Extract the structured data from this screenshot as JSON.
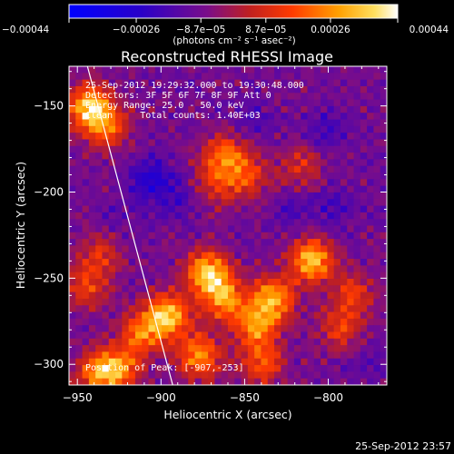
{
  "chart_data": {
    "type": "heatmap",
    "title": "Reconstructed RHESSI Image",
    "xlabel": "Heliocentric X (arcsec)",
    "ylabel": "Heliocentric Y (arcsec)",
    "xlim": [
      -955,
      -765
    ],
    "ylim": [
      -312,
      -127
    ],
    "x_ticks": [
      -950,
      -900,
      -850,
      -800
    ],
    "x_tick_labels": [
      "−950",
      "−900",
      "−850",
      "−800"
    ],
    "y_ticks": [
      -150,
      -200,
      -250,
      -300
    ],
    "y_tick_labels": [
      "−150",
      "−200",
      "−250",
      "−300"
    ],
    "colorbar": {
      "min": -0.00044,
      "max": 0.00044,
      "ticks": [
        -0.00044,
        -0.00026,
        -8.7e-05,
        8.7e-05,
        0.00026,
        0.00044
      ],
      "tick_labels": [
        "−0.00044",
        "−0.00026",
        "−8.7e−05",
        "8.7e−05",
        "0.00026",
        "0.00044"
      ],
      "unit_label": "(photons cm⁻² s⁻¹ asec⁻²)"
    },
    "annotations": [
      "25-Sep-2012 19:29:32.000 to 19:30:48.000",
      "Detectors: 3F 5F 6F 7F 8F 9F Att 0",
      "Energy Range: 25.0 - 50.0 keV",
      "Clean     Total counts: 1.40E+03"
    ],
    "peak_label": "Position of Peak: [-907,-253]",
    "peak_position": [
      -907,
      -253
    ],
    "limb_line": [
      [
        -944,
        -127
      ],
      [
        -893,
        -312
      ]
    ],
    "hot_regions": [
      {
        "x": -943,
        "y": -151,
        "value": 0.00044
      },
      {
        "x": -932,
        "y": -162,
        "value": 0.00026
      },
      {
        "x": -862,
        "y": -178,
        "value": 0.00026
      },
      {
        "x": -868,
        "y": -195,
        "value": 0.0002
      },
      {
        "x": -848,
        "y": -190,
        "value": 0.00024
      },
      {
        "x": -816,
        "y": -185,
        "value": 0.00018
      },
      {
        "x": -872,
        "y": -247,
        "value": 0.00044
      },
      {
        "x": -862,
        "y": -262,
        "value": 0.00035
      },
      {
        "x": -810,
        "y": -240,
        "value": 0.00044
      },
      {
        "x": -833,
        "y": -262,
        "value": 0.00038
      },
      {
        "x": -843,
        "y": -278,
        "value": 0.00034
      },
      {
        "x": -896,
        "y": -272,
        "value": 0.00044
      },
      {
        "x": -912,
        "y": -282,
        "value": 0.0003
      },
      {
        "x": -877,
        "y": -295,
        "value": 0.00036
      },
      {
        "x": -840,
        "y": -300,
        "value": 0.00026
      },
      {
        "x": -925,
        "y": -303,
        "value": 0.00032
      },
      {
        "x": -938,
        "y": -305,
        "value": 0.0003
      },
      {
        "x": -945,
        "y": -255,
        "value": 0.00022
      },
      {
        "x": -937,
        "y": -236,
        "value": 0.00018
      },
      {
        "x": -793,
        "y": -280,
        "value": 0.0002
      },
      {
        "x": -785,
        "y": -260,
        "value": 0.00022
      }
    ],
    "cold_regions": [
      {
        "x": -905,
        "y": -193,
        "value": -0.00026
      },
      {
        "x": -888,
        "y": -205,
        "value": -0.00018
      },
      {
        "x": -820,
        "y": -210,
        "value": -0.00016
      },
      {
        "x": -796,
        "y": -208,
        "value": -0.00018
      },
      {
        "x": -845,
        "y": -160,
        "value": -0.00016
      },
      {
        "x": -925,
        "y": -215,
        "value": -0.00014
      },
      {
        "x": -803,
        "y": -165,
        "value": -0.0002
      },
      {
        "x": -778,
        "y": -300,
        "value": -0.00016
      }
    ]
  },
  "footer_timestamp": "25-Sep-2012 23:57"
}
